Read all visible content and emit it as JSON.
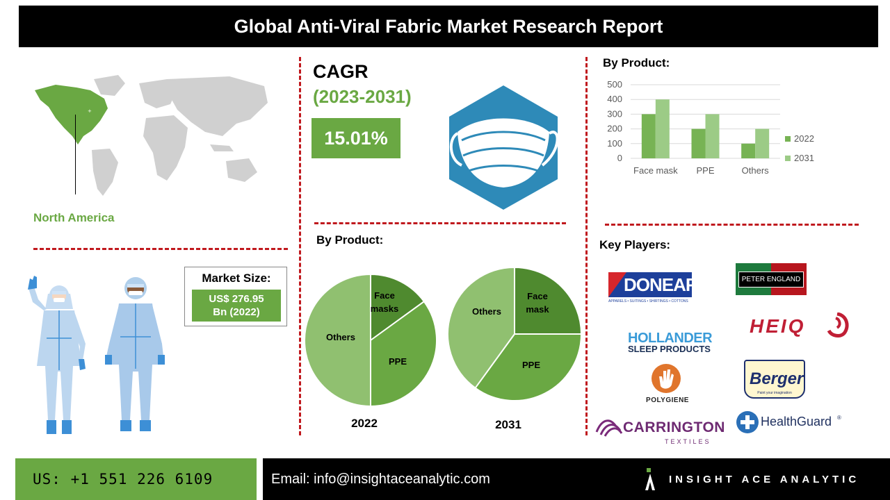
{
  "header": {
    "title": "Global Anti-Viral Fabric Market Research Report"
  },
  "region": {
    "label": "North America"
  },
  "cagr": {
    "title": "CAGR",
    "period": "(2023-2031)",
    "value": "15.01%"
  },
  "market_size": {
    "label": "Market Size:",
    "value_line1": "US$ 276.95",
    "value_line2": "Bn (2022)"
  },
  "colors": {
    "accent_green": "#6aa843",
    "dark_green": "#5a9a3a",
    "light_green": "#9ccb86",
    "mid_green": "#77b354",
    "red_dash": "#c0191e",
    "mask_blue": "#2e8ab8"
  },
  "bar_section": {
    "title": "By Product:"
  },
  "pie_section": {
    "title": "By Product:"
  },
  "key_players": {
    "title": "Key Players:",
    "logos": [
      {
        "name": "DONEAR",
        "sub": "APPARELS • SUITINGS • SHIRTINGS • COTTONS"
      },
      {
        "name": "PETER ENGLAND"
      },
      {
        "name": "HOLLANDER",
        "sub": "SLEEP PRODUCTS"
      },
      {
        "name": "HEIQ"
      },
      {
        "name": "POLYGIENE"
      },
      {
        "name": "Berger",
        "sub": "Paint your imagination"
      },
      {
        "name": "CARRINGTON",
        "sub": "TEXTILES"
      },
      {
        "name": "HealthGuard"
      }
    ]
  },
  "footer": {
    "phone": "US: +1 551 226 6109",
    "email": "Email: info@insightaceanalytic.com",
    "brand": "INSIGHT ACE ANALYTIC"
  },
  "chart_data": [
    {
      "type": "bar",
      "categories": [
        "Face mask",
        "PPE",
        "Others"
      ],
      "series": [
        {
          "name": "2022",
          "values": [
            300,
            200,
            100
          ]
        },
        {
          "name": "2031",
          "values": [
            400,
            300,
            200
          ]
        }
      ],
      "yticks": [
        "0",
        "100",
        "200",
        "300",
        "400",
        "500"
      ],
      "ylim": [
        0,
        500
      ],
      "legend": "right",
      "grid": true
    },
    {
      "type": "pie",
      "title": "2022",
      "labels": [
        "Face masks",
        "PPE",
        "Others"
      ],
      "values": [
        0.15,
        0.35,
        0.5
      ]
    },
    {
      "type": "pie",
      "title": "2031",
      "labels": [
        "Face mask",
        "PPE",
        "Others"
      ],
      "values": [
        0.25,
        0.35,
        0.4
      ]
    }
  ]
}
